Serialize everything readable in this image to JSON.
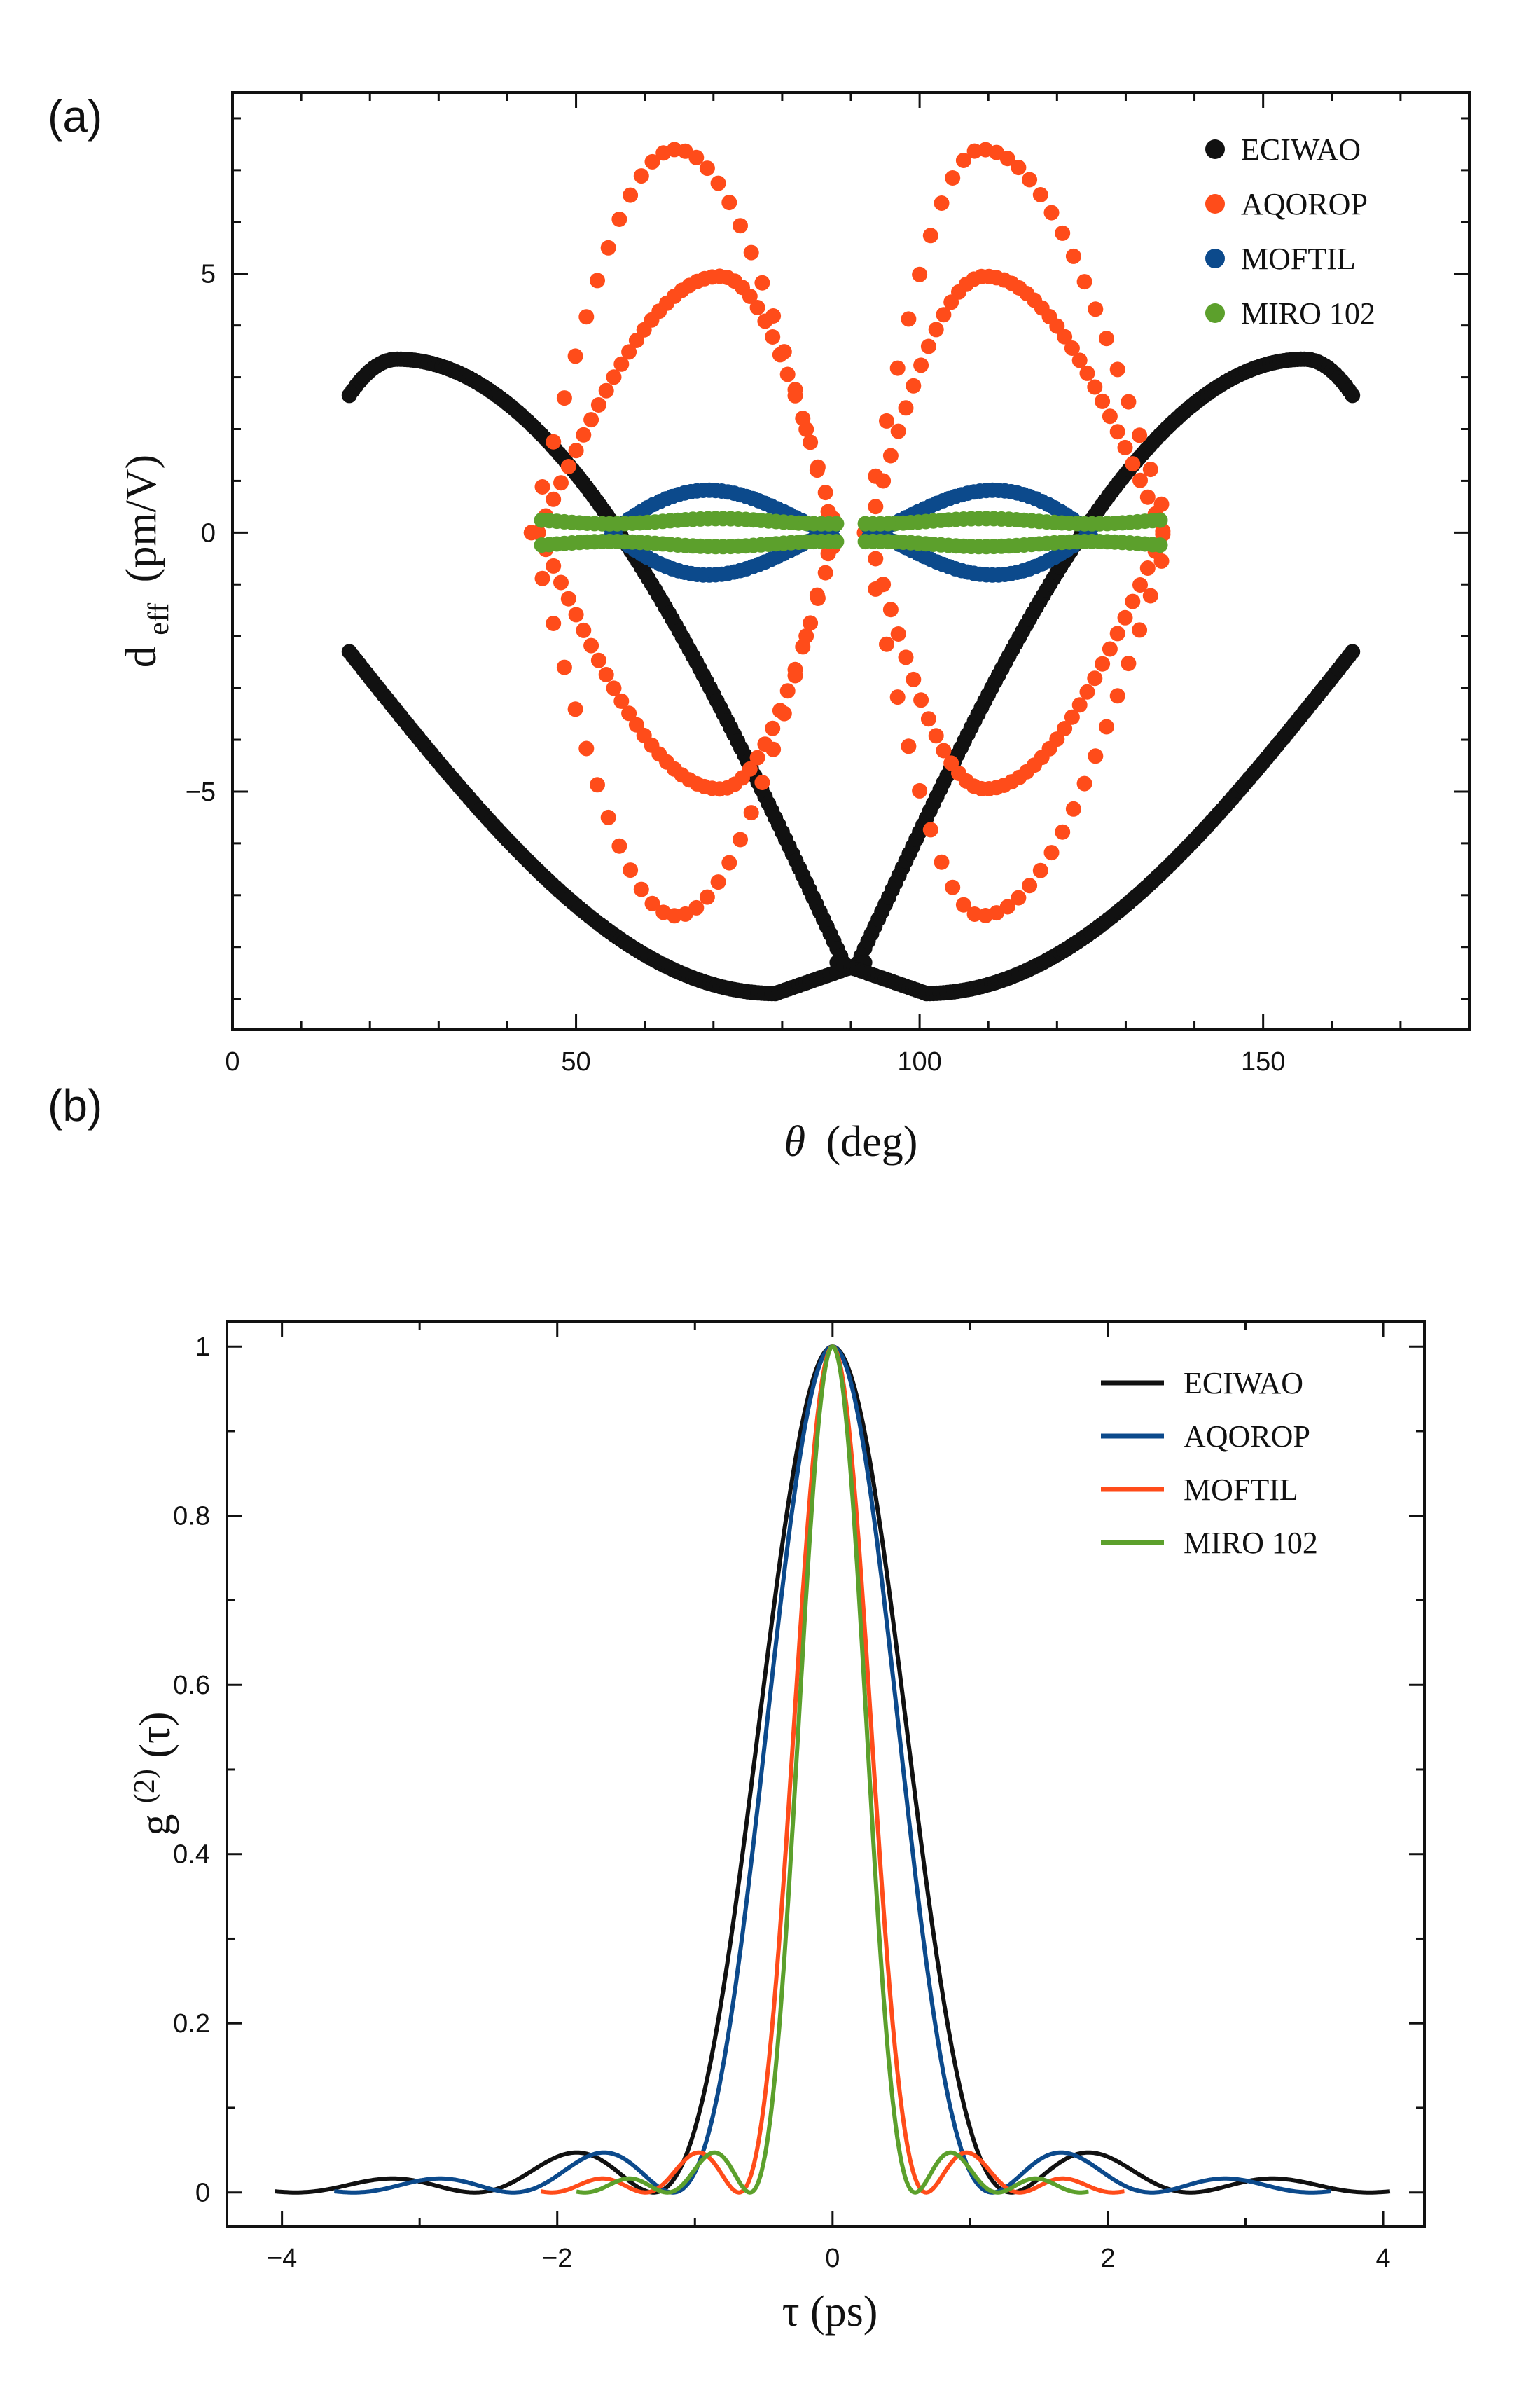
{
  "chart_data": [
    {
      "panel_label": "(a)",
      "type": "scatter",
      "xlabel_symbol": "θ",
      "xlabel_unit": "(deg)",
      "ylabel_main": "d",
      "ylabel_sub": "eff",
      "ylabel_unit": "(pm/V)",
      "xlim": [
        0,
        180
      ],
      "ylim": [
        -9.6,
        8.5
      ],
      "xticks": [
        0,
        50,
        100,
        150
      ],
      "xtick_labels": [
        "0",
        "50",
        "100",
        "150"
      ],
      "yticks": [
        -5,
        0,
        5
      ],
      "ytick_labels": [
        "−5",
        "0",
        "5"
      ],
      "legend_position": "top-right",
      "series": [
        {
          "name": "ECIWAO",
          "color": "#111111",
          "theta_range": [
            17,
            163
          ],
          "branch_upper_peak": 3.35,
          "branch_lower_min": -8.9,
          "branch_lower_theta_min": 79
        },
        {
          "name": "AQOROP",
          "color": "#ff4c1a",
          "outer_peak": 7.4,
          "inner_peak": 4.95,
          "theta_range": [
            43,
            137
          ]
        },
        {
          "name": "MOFTIL",
          "color": "#0c4a8c",
          "peak": 1.0,
          "theta_range": [
            55,
            125
          ]
        },
        {
          "name": "MIRO 102",
          "color": "#5ca02c",
          "level": 0.22,
          "theta_range": [
            45,
            135
          ]
        }
      ]
    },
    {
      "panel_label": "(b)",
      "type": "line",
      "xlabel": "τ (ps)",
      "ylabel_main": "g",
      "ylabel_sup": "(2)",
      "ylabel_arg": "(τ)",
      "xlim": [
        -4.4,
        4.3
      ],
      "ylim": [
        -0.04,
        1.03
      ],
      "xticks": [
        -4,
        -2,
        0,
        2,
        4
      ],
      "xtick_labels": [
        "−4",
        "−2",
        "0",
        "2",
        "4"
      ],
      "yticks": [
        0,
        0.2,
        0.4,
        0.6,
        0.8,
        1
      ],
      "ytick_labels": [
        "0",
        "0.2",
        "0.4",
        "0.6",
        "0.8",
        "1"
      ],
      "legend_position": "top-right",
      "series": [
        {
          "name": "ECIWAO",
          "color": "#111111",
          "first_zero": 1.3,
          "x_extent": 4.05
        },
        {
          "name": "AQOROP",
          "color": "#0c4a8c",
          "first_zero": 1.16,
          "x_extent": 3.62
        },
        {
          "name": "MOFTIL",
          "color": "#ff4c1a",
          "first_zero": 0.68,
          "x_extent": 2.12
        },
        {
          "name": "MIRO 102",
          "color": "#5ca02c",
          "first_zero": 0.6,
          "x_extent": 1.86
        }
      ]
    }
  ]
}
